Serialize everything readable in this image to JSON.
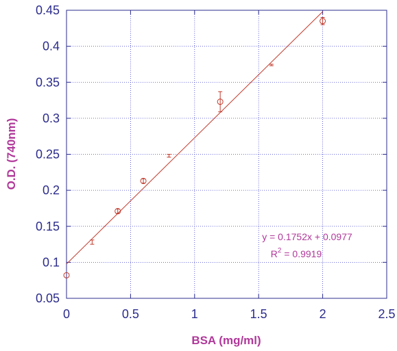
{
  "chart_data": {
    "type": "scatter",
    "title": "",
    "xlabel": "BSA (mg/ml)",
    "ylabel": "O.D. (740nm)",
    "xlim": [
      0,
      2.5
    ],
    "ylim": [
      0.05,
      0.45
    ],
    "x_ticks": [
      "0",
      "0.5",
      "1",
      "1.5",
      "2",
      "2.5"
    ],
    "y_ticks": [
      "0.05",
      "0.1",
      "0.15",
      "0.2",
      "0.25",
      "0.3",
      "0.35",
      "0.4",
      "0.45"
    ],
    "grid": true,
    "points": [
      {
        "x": 0.0,
        "y": 0.082,
        "err": 0.0,
        "marker": "circle"
      },
      {
        "x": 0.2,
        "y": 0.128,
        "err": 0.003,
        "marker": "none"
      },
      {
        "x": 0.4,
        "y": 0.171,
        "err": 0.003,
        "marker": "circle"
      },
      {
        "x": 0.6,
        "y": 0.213,
        "err": 0.003,
        "marker": "circle"
      },
      {
        "x": 0.8,
        "y": 0.248,
        "err": 0.002,
        "marker": "none"
      },
      {
        "x": 1.2,
        "y": 0.323,
        "err": 0.014,
        "marker": "circle"
      },
      {
        "x": 1.6,
        "y": 0.374,
        "err": 0.001,
        "marker": "none"
      },
      {
        "x": 2.0,
        "y": 0.435,
        "err": 0.005,
        "marker": "circle"
      }
    ],
    "fit": {
      "slope": 0.1752,
      "intercept": 0.0977,
      "x_range": [
        0,
        2.0
      ]
    },
    "equation_text": "y = 0.1752x + 0.0977",
    "r2_prefix": "R",
    "r2_exp": "2",
    "r2_value": " = 0.9919",
    "colors": {
      "series": "#c0392b",
      "axis_text": "#2b2b8c",
      "label": "#b0389a",
      "grid": "#3a3ad0"
    }
  }
}
